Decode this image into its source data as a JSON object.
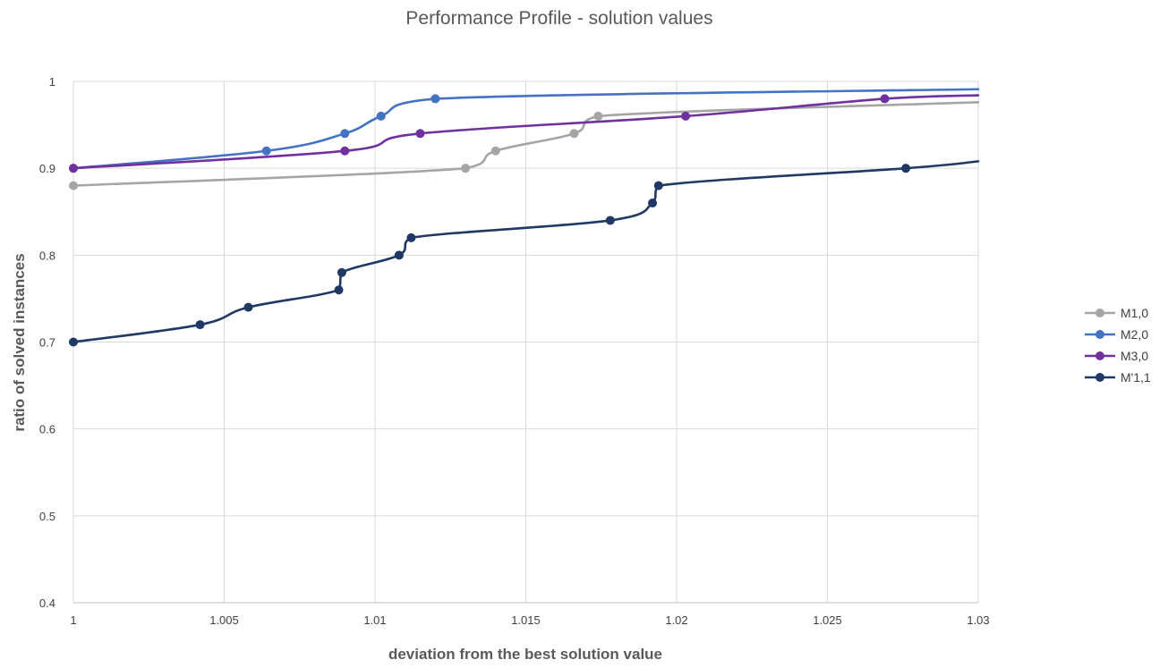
{
  "chart_data": {
    "type": "line",
    "title": "Performance Profile - solution values",
    "xlabel": "deviation from the best solution value",
    "ylabel": "ratio of solved instances",
    "xlim": [
      1,
      1.03
    ],
    "ylim": [
      0.4,
      1
    ],
    "x_ticks": [
      "1",
      "1.005",
      "1.01",
      "1.015",
      "1.02",
      "1.025",
      "1.03"
    ],
    "y_ticks": [
      "0.4",
      "0.5",
      "0.6",
      "0.7",
      "0.8",
      "0.9",
      "1"
    ],
    "grid": true,
    "legend_position": "right",
    "series": [
      {
        "name": "M1,0",
        "color": "#a5a5a5",
        "points": [
          [
            1.0,
            0.88
          ],
          [
            1.013,
            0.9
          ],
          [
            1.014,
            0.92
          ],
          [
            1.0166,
            0.94
          ],
          [
            1.0174,
            0.96
          ]
        ],
        "end": [
          1.03,
          0.976
        ]
      },
      {
        "name": "M2,0",
        "color": "#4472c4",
        "points": [
          [
            1.0,
            0.9
          ],
          [
            1.0064,
            0.92
          ],
          [
            1.009,
            0.94
          ],
          [
            1.0102,
            0.96
          ],
          [
            1.012,
            0.98
          ]
        ],
        "end": [
          1.03,
          0.991
        ]
      },
      {
        "name": "M3,0",
        "color": "#7030a0",
        "points": [
          [
            1.0,
            0.9
          ],
          [
            1.009,
            0.92
          ],
          [
            1.0115,
            0.94
          ],
          [
            1.0203,
            0.96
          ],
          [
            1.0269,
            0.98
          ]
        ],
        "end": [
          1.03,
          0.984
        ]
      },
      {
        "name": "M'1,1",
        "color": "#203864",
        "points": [
          [
            1.0,
            0.7
          ],
          [
            1.0042,
            0.72
          ],
          [
            1.0058,
            0.74
          ],
          [
            1.0088,
            0.76
          ],
          [
            1.0089,
            0.78
          ],
          [
            1.0108,
            0.8
          ],
          [
            1.0112,
            0.82
          ],
          [
            1.0178,
            0.84
          ],
          [
            1.0192,
            0.86
          ],
          [
            1.0194,
            0.88
          ],
          [
            1.0276,
            0.9
          ]
        ],
        "end": [
          1.03,
          0.908
        ]
      }
    ]
  }
}
